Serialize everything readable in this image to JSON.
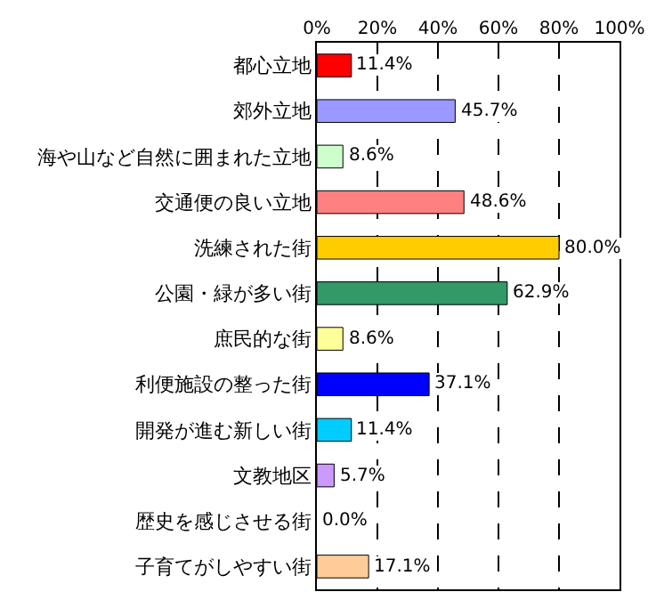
{
  "chart_data": {
    "type": "bar",
    "orientation": "horizontal",
    "categories": [
      "都心立地",
      "郊外立地",
      "海や山など自然に囲まれた立地",
      "交通便の良い立地",
      "洗練された街",
      "公園・緑が多い街",
      "庶民的な街",
      "利便施設の整った街",
      "開発が進む新しい街",
      "文教地区",
      "歴史を感じさせる街",
      "子育てがしやすい街"
    ],
    "values": [
      11.4,
      45.7,
      8.6,
      48.6,
      80.0,
      62.9,
      8.6,
      37.1,
      11.4,
      5.7,
      0.0,
      17.1
    ],
    "value_labels": [
      "11.4%",
      "45.7%",
      "8.6%",
      "48.6%",
      "80.0%",
      "62.9%",
      "8.6%",
      "37.1%",
      "11.4%",
      "5.7%",
      "0.0%",
      "17.1%"
    ],
    "colors": [
      "#ff0000",
      "#9999ff",
      "#ccffcc",
      "#ff8080",
      "#ffcc00",
      "#339966",
      "#ffff99",
      "#0000ff",
      "#00ccff",
      "#cc99ff",
      "#ff99cc",
      "#ffcc99"
    ],
    "xlim": [
      0,
      100
    ],
    "xticks": [
      {
        "value": 0,
        "label": "0%"
      },
      {
        "value": 20,
        "label": "20%"
      },
      {
        "value": 40,
        "label": "40%"
      },
      {
        "value": 60,
        "label": "60%"
      },
      {
        "value": 80,
        "label": "80%"
      },
      {
        "value": 100,
        "label": "100%"
      }
    ],
    "grid": "x"
  }
}
